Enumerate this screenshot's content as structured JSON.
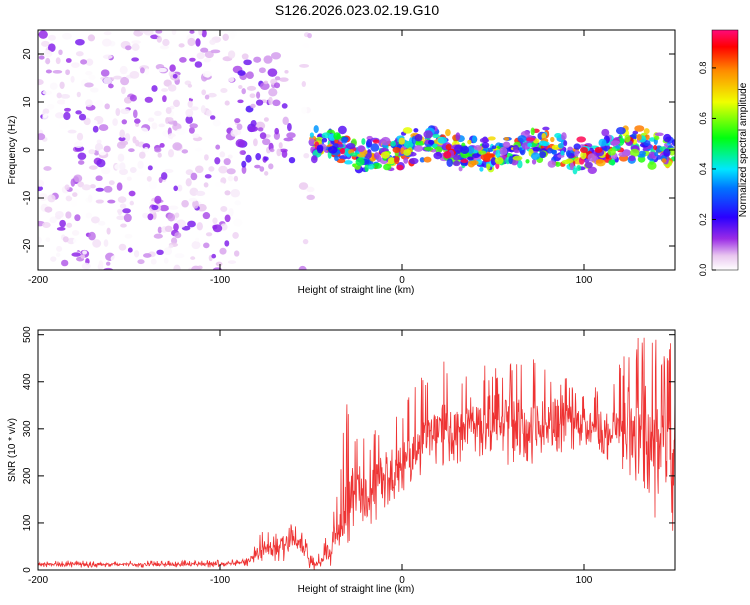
{
  "title": "S126.2026.023.02.19.G10",
  "chart_data": [
    {
      "type": "heatmap",
      "xlabel": "Height of straight line (km)",
      "ylabel": "Frequency (Hz)",
      "xlim": [
        -200,
        150
      ],
      "ylim": [
        -25,
        25
      ],
      "xticks": [
        -200,
        -100,
        0,
        100
      ],
      "yticks": [
        -20,
        -10,
        0,
        10,
        20
      ],
      "colorbar": {
        "label": "Normalized spectral amplitude",
        "range": [
          0,
          0.95
        ],
        "ticks": [
          "0.0",
          "0.2",
          "0.4",
          "0.6",
          "0.8"
        ],
        "tick_values": [
          0.0,
          0.2,
          0.4,
          0.6,
          0.8
        ],
        "colormap": "rainbow (white to magenta, violet, blue, cyan, green, yellow, orange, red)"
      },
      "regions": [
        {
          "x_range": [
            -200,
            -90
          ],
          "frequency_range": [
            -25,
            25
          ],
          "amplitude_range": [
            0.0,
            0.15
          ]
        },
        {
          "x_range": [
            -90,
            -60
          ],
          "frequency_range": [
            -5,
            20
          ],
          "amplitude_range": [
            0.05,
            0.2
          ]
        },
        {
          "x_range": [
            -55,
            -50
          ],
          "frequency_range": [
            -25,
            25
          ],
          "amplitude_range": [
            0.0,
            0.1
          ]
        },
        {
          "x_range": [
            -50,
            150
          ],
          "frequency_center": 0,
          "frequency_halfwidth": 4,
          "amplitude_range": [
            0.1,
            0.95
          ]
        }
      ],
      "peaks": [
        {
          "x": -3,
          "frequency": 0,
          "amplitude": 0.85
        },
        {
          "x": 14,
          "frequency": -2,
          "amplitude": 0.8
        },
        {
          "x": 100,
          "frequency": 0,
          "amplitude": 0.9
        },
        {
          "x": 108,
          "frequency": 0,
          "amplitude": 0.9
        }
      ]
    },
    {
      "type": "line",
      "xlabel": "Height of straight line (km)",
      "ylabel": "SNR (10 * v/v)",
      "xlim": [
        -200,
        150
      ],
      "ylim": [
        0,
        510
      ],
      "xticks": [
        -200,
        -100,
        0,
        100
      ],
      "yticks": [
        0,
        100,
        200,
        300,
        400,
        500
      ],
      "series": [
        {
          "color": "#ee3333",
          "x": [
            -200,
            -180,
            -160,
            -140,
            -120,
            -100,
            -90,
            -85,
            -80,
            -70,
            -60,
            -55,
            -50,
            -45,
            -40,
            -35,
            -30,
            -25,
            -20,
            -15,
            -10,
            -5,
            0,
            5,
            10,
            15,
            20,
            30,
            40,
            50,
            60,
            70,
            80,
            90,
            100,
            110,
            120,
            130,
            140,
            150
          ],
          "y_mean": [
            12,
            12,
            12,
            12,
            12,
            13,
            14,
            20,
            40,
            50,
            60,
            55,
            10,
            15,
            40,
            90,
            120,
            180,
            150,
            180,
            200,
            210,
            220,
            240,
            270,
            280,
            300,
            300,
            310,
            320,
            310,
            300,
            310,
            320,
            300,
            290,
            300,
            290,
            260,
            250
          ],
          "y_max": [
            20,
            20,
            20,
            20,
            20,
            22,
            25,
            40,
            80,
            90,
            105,
            90,
            30,
            40,
            90,
            180,
            390,
            280,
            280,
            300,
            330,
            360,
            350,
            380,
            420,
            400,
            460,
            420,
            450,
            430,
            440,
            450,
            440,
            420,
            380,
            400,
            440,
            510,
            490,
            480
          ],
          "y_min": [
            5,
            5,
            5,
            5,
            5,
            5,
            6,
            8,
            10,
            15,
            20,
            10,
            0,
            0,
            5,
            20,
            50,
            100,
            80,
            100,
            120,
            150,
            150,
            170,
            200,
            220,
            220,
            220,
            230,
            230,
            220,
            210,
            230,
            240,
            240,
            250,
            200,
            180,
            80,
            70
          ]
        }
      ]
    }
  ]
}
